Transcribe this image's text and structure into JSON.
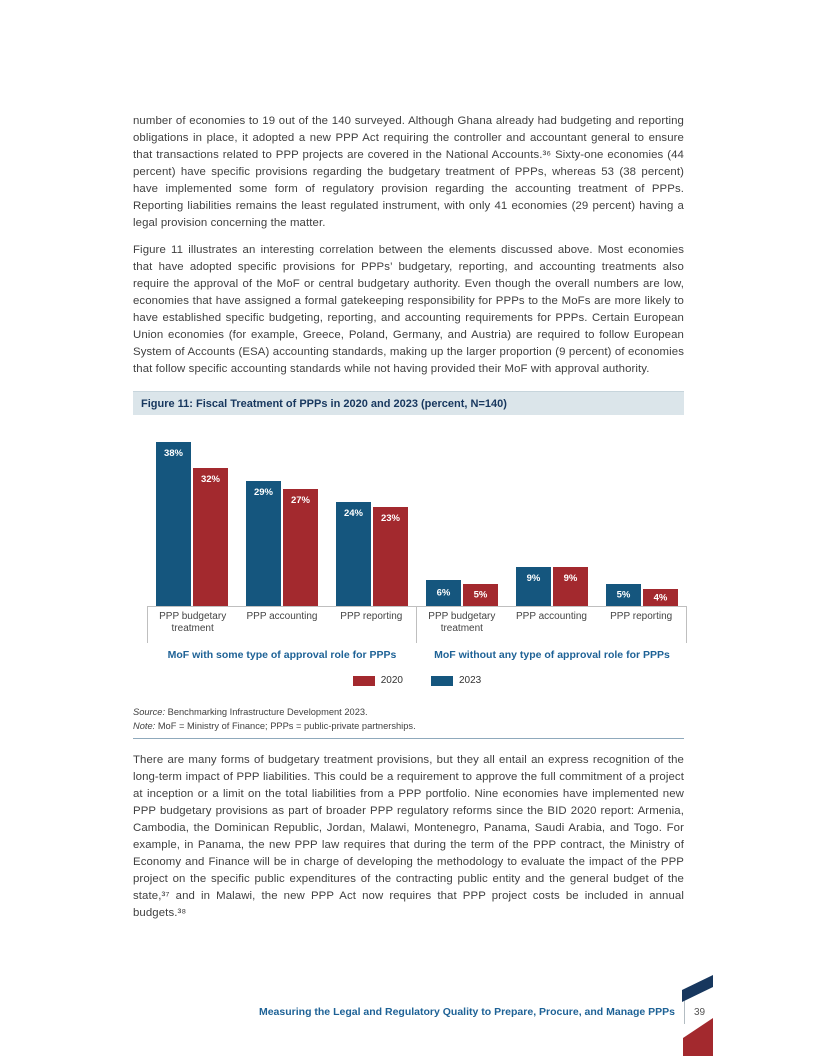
{
  "page": {
    "paragraphs": {
      "p1": "number of economies to 19 out of the 140 surveyed. Although Ghana already had budgeting and reporting obligations in place, it adopted a new PPP Act requiring the controller and accountant general to ensure that transactions related to PPP projects are covered in the National Accounts.³⁶ Sixty-one economies (44 percent) have specific provisions regarding the budgetary treatment of PPPs, whereas 53 (38 percent) have implemented some form of regulatory provision regarding the accounting treatment of PPPs. Reporting liabilities remains the least regulated instrument, with only 41 economies (29 percent) having a legal provision concerning the matter.",
      "p2": "Figure 11 illustrates an interesting correlation between the elements discussed above. Most economies that have adopted specific provisions for PPPs’ budgetary, reporting, and accounting treatments also require the approval of the MoF or central budgetary authority. Even though the overall numbers are low, economies that have assigned a formal gatekeeping responsibility for PPPs to the MoFs are more likely to have established specific budgeting, reporting, and accounting requirements for PPPs. Certain European Union economies (for example, Greece, Poland, Germany, and Austria) are required to follow European System of Accounts (ESA) accounting standards, making up the larger proportion (9 percent) of economies that follow specific accounting standards while not having provided their MoF with approval authority.",
      "p3": "There are many forms of budgetary treatment provisions, but they all entail an express recognition of the long-term impact of PPP liabilities. This could be a requirement to approve the full commitment of a project at inception or a limit on the total liabilities from a PPP portfolio. Nine economies have implemented new PPP budgetary provisions as part of broader PPP regulatory reforms since the BID 2020 report: Armenia, Cambodia, the Dominican Republic, Jordan, Malawi, Montenegro, Panama, Saudi Arabia, and Togo. For example, in Panama, the new PPP law requires that during the term of the PPP contract, the Ministry of Economy and Finance will be in charge of developing the methodology to evaluate the impact of the PPP project on the specific public expenditures of the contracting public entity and the general budget of the state,³⁷ and in Malawi, the new PPP Act now requires that PPP project costs be included in annual budgets.³⁸"
    },
    "figure": {
      "title": "Figure 11: Fiscal Treatment of PPPs in 2020 and 2023 (percent, N=140)",
      "source_label": "Source:",
      "source_text": " Benchmarking Infrastructure Development 2023.",
      "note_label": "Note:",
      "note_text": " MoF = Ministry of Finance; PPPs = public-private partnerships."
    },
    "footer": {
      "text": "Measuring the Legal and Regulatory Quality to Prepare, Procure, and Manage PPPs",
      "page_number": "39"
    },
    "colors": {
      "navy_accent": "#17375e",
      "red_accent": "#a3292e",
      "blue_heading": "#1e6296",
      "banner_bg": "#dbe5ea"
    }
  },
  "chart_data": {
    "type": "bar",
    "title": "Figure 11: Fiscal Treatment of PPPs in 2020 and 2023 (percent, N=140)",
    "value_suffix": "%",
    "ylim": [
      0,
      40
    ],
    "grid": false,
    "legend_position": "bottom-center",
    "bar_order": [
      "2023",
      "2020"
    ],
    "colors": {
      "2020": "#a3292e",
      "2023": "#15567e"
    },
    "groups": [
      {
        "label": "MoF with some type of approval role for PPPs",
        "categories": [
          "PPP budgetary treatment",
          "PPP accounting",
          "PPP reporting"
        ],
        "series": [
          {
            "name": "2023",
            "values": [
              38,
              29,
              24
            ]
          },
          {
            "name": "2020",
            "values": [
              32,
              27,
              23
            ]
          }
        ]
      },
      {
        "label": "MoF without any type of approval role for PPPs",
        "categories": [
          "PPP budgetary treatment",
          "PPP accounting",
          "PPP reporting"
        ],
        "series": [
          {
            "name": "2023",
            "values": [
              6,
              9,
              5
            ]
          },
          {
            "name": "2020",
            "values": [
              5,
              9,
              4
            ]
          }
        ]
      }
    ],
    "legend": [
      {
        "name": "2020",
        "color": "#a3292e"
      },
      {
        "name": "2023",
        "color": "#15567e"
      }
    ]
  }
}
